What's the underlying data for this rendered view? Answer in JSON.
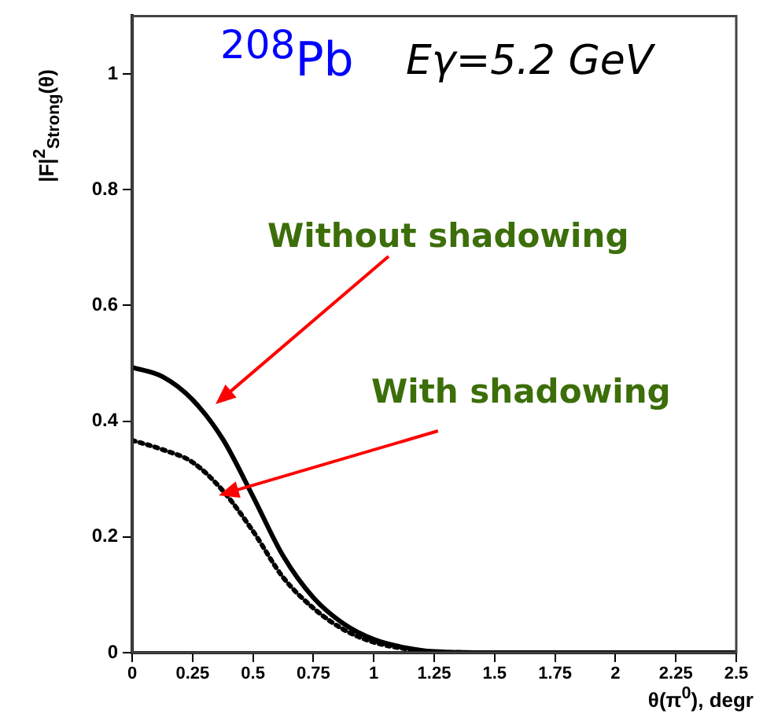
{
  "chart_data": {
    "type": "line",
    "xlabel": "θ(π$^{0}$), degr",
    "ylabel": "|F|$^{2}$$_{Strong}$(θ)",
    "annotations": [
      "$^{208}$Pb",
      "Eγ=5.2 GeV",
      "Without shadowing",
      {
        "text": "With shadowing",
        "x": 0.375,
        "y": 0.28
      }
    ],
    "xlim": [
      0,
      2.5
    ],
    "ylim": [
      0,
      1.1
    ],
    "xticks": [
      0,
      0.25,
      0.5,
      0.75,
      1,
      1.25,
      1.5,
      1.75,
      2,
      2.25,
      2.5
    ],
    "yticks": [
      0,
      0.2,
      0.4,
      0.6,
      0.8,
      1
    ],
    "grid": false,
    "legend": false,
    "marker": "none",
    "series": [
      {
        "color": "#000000",
        "line_style": "solid",
        "x": [
          0,
          0.125,
          0.25,
          0.375,
          0.5,
          0.625,
          0.75,
          0.875,
          1,
          1.125,
          1.25,
          1.5,
          2,
          2.5
        ],
        "values": [
          0.493,
          0.477,
          0.437,
          0.369,
          0.27,
          0.167,
          0.095,
          0.05,
          0.023,
          0.009,
          0.002,
          0,
          0,
          0
        ]
      },
      {
        "color": "#000000",
        "line_style": "dotted",
        "x": [
          0,
          0.125,
          0.25,
          0.375,
          0.5,
          0.625,
          0.75,
          0.875,
          1,
          1.125,
          1.25,
          1.5,
          2,
          2.5
        ],
        "values": [
          0.367,
          0.351,
          0.329,
          0.28,
          0.21,
          0.13,
          0.077,
          0.04,
          0.018,
          0.007,
          0.001,
          0,
          0,
          0
        ]
      }
    ]
  }
}
